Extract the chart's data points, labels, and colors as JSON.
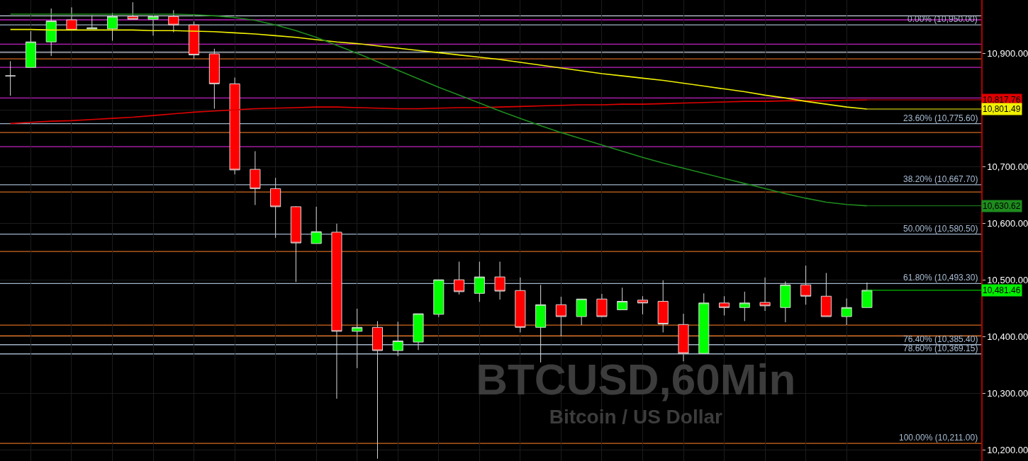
{
  "chart_data": {
    "type": "candlestick",
    "title": "BTCUSD,60Min",
    "subtitle": "Bitcoin / US Dollar",
    "categories": [
      null,
      null,
      null,
      null,
      null,
      null,
      null,
      null,
      null,
      null,
      null,
      null,
      null,
      null,
      null,
      null,
      null,
      null,
      null,
      null,
      null,
      null,
      null,
      null,
      null,
      null,
      null,
      null,
      null,
      null,
      null,
      null,
      null,
      null,
      null,
      null,
      null,
      null,
      null,
      null,
      null,
      null,
      null
    ],
    "ohlc": [
      [
        10860,
        10886,
        10825,
        10860
      ],
      [
        10875,
        10939,
        10875,
        10920
      ],
      [
        10920,
        10979,
        10895,
        10957
      ],
      [
        10959,
        10981,
        10941,
        10941
      ],
      [
        10943,
        10967,
        10943,
        10945
      ],
      [
        10943,
        10971,
        10922,
        10965
      ],
      [
        10965,
        10990,
        10960,
        10960
      ],
      [
        10960,
        10965,
        10931,
        10965
      ],
      [
        10965,
        10976,
        10937,
        10950
      ],
      [
        10950,
        10956,
        10890,
        10897
      ],
      [
        10899,
        10908,
        10802,
        10846
      ],
      [
        10846,
        10857,
        10686,
        10694
      ],
      [
        10695,
        10727,
        10632,
        10661
      ],
      [
        10661,
        10680,
        10574,
        10629
      ],
      [
        10629,
        10630,
        10496,
        10565
      ],
      [
        10564,
        10629,
        10564,
        10585
      ],
      [
        10584,
        10599,
        10290,
        10409
      ],
      [
        10409,
        10449,
        10344,
        10416
      ],
      [
        10416,
        10427,
        10184,
        10375
      ],
      [
        10375,
        10426,
        10365,
        10392
      ],
      [
        10390,
        10440,
        10376,
        10440
      ],
      [
        10439,
        10500,
        10434,
        10500
      ],
      [
        10500,
        10532,
        10474,
        10479
      ],
      [
        10476,
        10532,
        10461,
        10505
      ],
      [
        10505,
        10532,
        10465,
        10480
      ],
      [
        10481,
        10504,
        10407,
        10416
      ],
      [
        10416,
        10491,
        10354,
        10456
      ],
      [
        10456,
        10470,
        10400,
        10435
      ],
      [
        10435,
        10466,
        10420,
        10466
      ],
      [
        10466,
        10475,
        10434,
        10435
      ],
      [
        10447,
        10486,
        10447,
        10462
      ],
      [
        10464,
        10471,
        10439,
        10459
      ],
      [
        10462,
        10499,
        10407,
        10422
      ],
      [
        10421,
        10440,
        10356,
        10370
      ],
      [
        10370,
        10476,
        10370,
        10459
      ],
      [
        10459,
        10471,
        10437,
        10451
      ],
      [
        10451,
        10479,
        10427,
        10459
      ],
      [
        10460,
        10504,
        10445,
        10454
      ],
      [
        10451,
        10497,
        10425,
        10491
      ],
      [
        10491,
        10525,
        10456,
        10471
      ],
      [
        10471,
        10512,
        10435,
        10435
      ],
      [
        10435,
        10467,
        10420,
        10451
      ],
      [
        10451,
        10495,
        10451,
        10481.46
      ]
    ],
    "series": [
      {
        "type": "line",
        "color": "#e00000",
        "values": [
          10776,
          10778,
          10780,
          10781,
          10783,
          10785,
          10787,
          10790,
          10793,
          10796,
          10798,
          10800,
          10802,
          10803,
          10804,
          10805,
          10805,
          10804,
          10803,
          10802,
          10802,
          10803,
          10804,
          10804,
          10805,
          10806,
          10807,
          10808,
          10809,
          10809,
          10810,
          10810,
          10811,
          10812,
          10813,
          10814,
          10815,
          10815,
          10816,
          10816,
          10816,
          10817,
          10817.76
        ],
        "value_labels": [
          null,
          null,
          null,
          null,
          null,
          null,
          null,
          null,
          null,
          null,
          null,
          null,
          null,
          null,
          null,
          null,
          null,
          null,
          null,
          null,
          null,
          null,
          null,
          null,
          null,
          null,
          null,
          null,
          null,
          null,
          null,
          null,
          null,
          null,
          null,
          null,
          null,
          null,
          null,
          null,
          null,
          null,
          "10,817.76"
        ]
      },
      {
        "type": "line",
        "color": "#f0f000",
        "values": [
          10942,
          10942,
          10941,
          10941,
          10941,
          10941,
          10941,
          10940,
          10940,
          10939,
          10938,
          10936,
          10934,
          10931,
          10928,
          10924,
          10920,
          10917,
          10913,
          10909,
          10905,
          10901,
          10897,
          10893,
          10889,
          10884,
          10879,
          10874,
          10869,
          10864,
          10860,
          10856,
          10852,
          10847,
          10842,
          10837,
          10832,
          10826,
          10821,
          10815,
          10810,
          10805,
          10801.49
        ],
        "value_labels": [
          null,
          null,
          null,
          null,
          null,
          null,
          null,
          null,
          null,
          null,
          null,
          null,
          null,
          null,
          null,
          null,
          null,
          null,
          null,
          null,
          null,
          null,
          null,
          null,
          null,
          null,
          null,
          null,
          null,
          null,
          null,
          null,
          null,
          null,
          null,
          null,
          null,
          null,
          null,
          null,
          null,
          null,
          "10,801.49"
        ]
      },
      {
        "type": "line",
        "color": "#1e8c1e",
        "values": [
          10969,
          10969,
          10969,
          10969,
          10969,
          10969,
          10969,
          10969,
          10969,
          10968,
          10966,
          10963,
          10958,
          10950,
          10940,
          10928,
          10914,
          10900,
          10885,
          10870,
          10855,
          10840,
          10826,
          10812,
          10798,
          10785,
          10772,
          10760,
          10749,
          10738,
          10727,
          10716,
          10706,
          10697,
          10688,
          10679,
          10670,
          10661,
          10652,
          10644,
          10637,
          10633,
          10630.62
        ],
        "value_labels": [
          null,
          null,
          null,
          null,
          null,
          null,
          null,
          null,
          null,
          null,
          null,
          null,
          null,
          null,
          null,
          null,
          null,
          null,
          null,
          null,
          null,
          null,
          null,
          null,
          null,
          null,
          null,
          null,
          null,
          null,
          null,
          null,
          null,
          null,
          null,
          null,
          null,
          null,
          null,
          null,
          null,
          null,
          "10,630.62"
        ]
      }
    ],
    "value_labels": [
      null,
      null,
      null,
      null,
      null,
      null,
      null,
      null,
      null,
      null,
      null,
      null,
      null,
      null,
      null,
      null,
      null,
      null,
      null,
      null,
      null,
      null,
      null,
      null,
      null,
      null,
      null,
      null,
      null,
      null,
      null,
      null,
      null,
      null,
      null,
      null,
      null,
      null,
      null,
      null,
      null,
      null,
      "10,481.46"
    ],
    "ylim": [
      10180,
      10994
    ],
    "yticks": [
      {
        "value": 10200,
        "label": "10,200.00"
      },
      {
        "value": 10300,
        "label": "10,300.00"
      },
      {
        "value": 10400,
        "label": "10,400.00"
      },
      {
        "value": 10500,
        "label": "10,500.00"
      },
      {
        "value": 10600,
        "label": "10,600.00"
      },
      {
        "value": 10700,
        "label": "10,700.00"
      },
      {
        "value": 10800,
        "label": null
      },
      {
        "value": 10900,
        "label": "10,900.00"
      }
    ],
    "ref_lines": [
      {
        "axis": "y",
        "value": 10950,
        "label": "0.00% (10,950.00)",
        "color": "#9fb3c8"
      },
      {
        "axis": "y",
        "value": 10775.6,
        "label": "23.60% (10,775.60)",
        "color": "#9fb3c8"
      },
      {
        "axis": "y",
        "value": 10667.7,
        "label": "38.20% (10,667.70)",
        "color": "#9fb3c8"
      },
      {
        "axis": "y",
        "value": 10580.5,
        "label": "50.00% (10,580.50)",
        "color": "#9fb3c8"
      },
      {
        "axis": "y",
        "value": 10493.3,
        "label": "61.80% (10,493.30)",
        "color": "#9fb3c8"
      },
      {
        "axis": "y",
        "value": 10385.4,
        "label": "76.40% (10,385.40)",
        "color": "#9fb3c8"
      },
      {
        "axis": "y",
        "value": 10369.15,
        "label": "78.60% (10,369.15)",
        "color": "#9fb3c8"
      },
      {
        "axis": "y",
        "value": 10211,
        "label": "100.00% (10,211.00)",
        "color": "#d2691e"
      },
      {
        "axis": "y",
        "value": 10966,
        "color": "#c8d0e0"
      },
      {
        "axis": "y",
        "value": 10902,
        "color": "#c8d0e0"
      },
      {
        "axis": "y",
        "value": 10959,
        "color": "#c020c0"
      },
      {
        "axis": "y",
        "value": 10916,
        "color": "#c020c0"
      },
      {
        "axis": "y",
        "value": 10875,
        "color": "#c020c0"
      },
      {
        "axis": "y",
        "value": 10821,
        "color": "#c020c0"
      },
      {
        "axis": "y",
        "value": 10735,
        "color": "#c020c0"
      },
      {
        "axis": "y",
        "value": 10890,
        "color": "#d2691e"
      },
      {
        "axis": "y",
        "value": 10760,
        "color": "#d2691e"
      },
      {
        "axis": "y",
        "value": 10655,
        "color": "#d2691e"
      },
      {
        "axis": "y",
        "value": 10550,
        "color": "#d2691e"
      },
      {
        "axis": "y",
        "value": 10420,
        "color": "#d2691e"
      },
      {
        "axis": "y",
        "value": 10401,
        "color": "#d2691e"
      }
    ],
    "grid": true,
    "tick_labels": "y"
  }
}
